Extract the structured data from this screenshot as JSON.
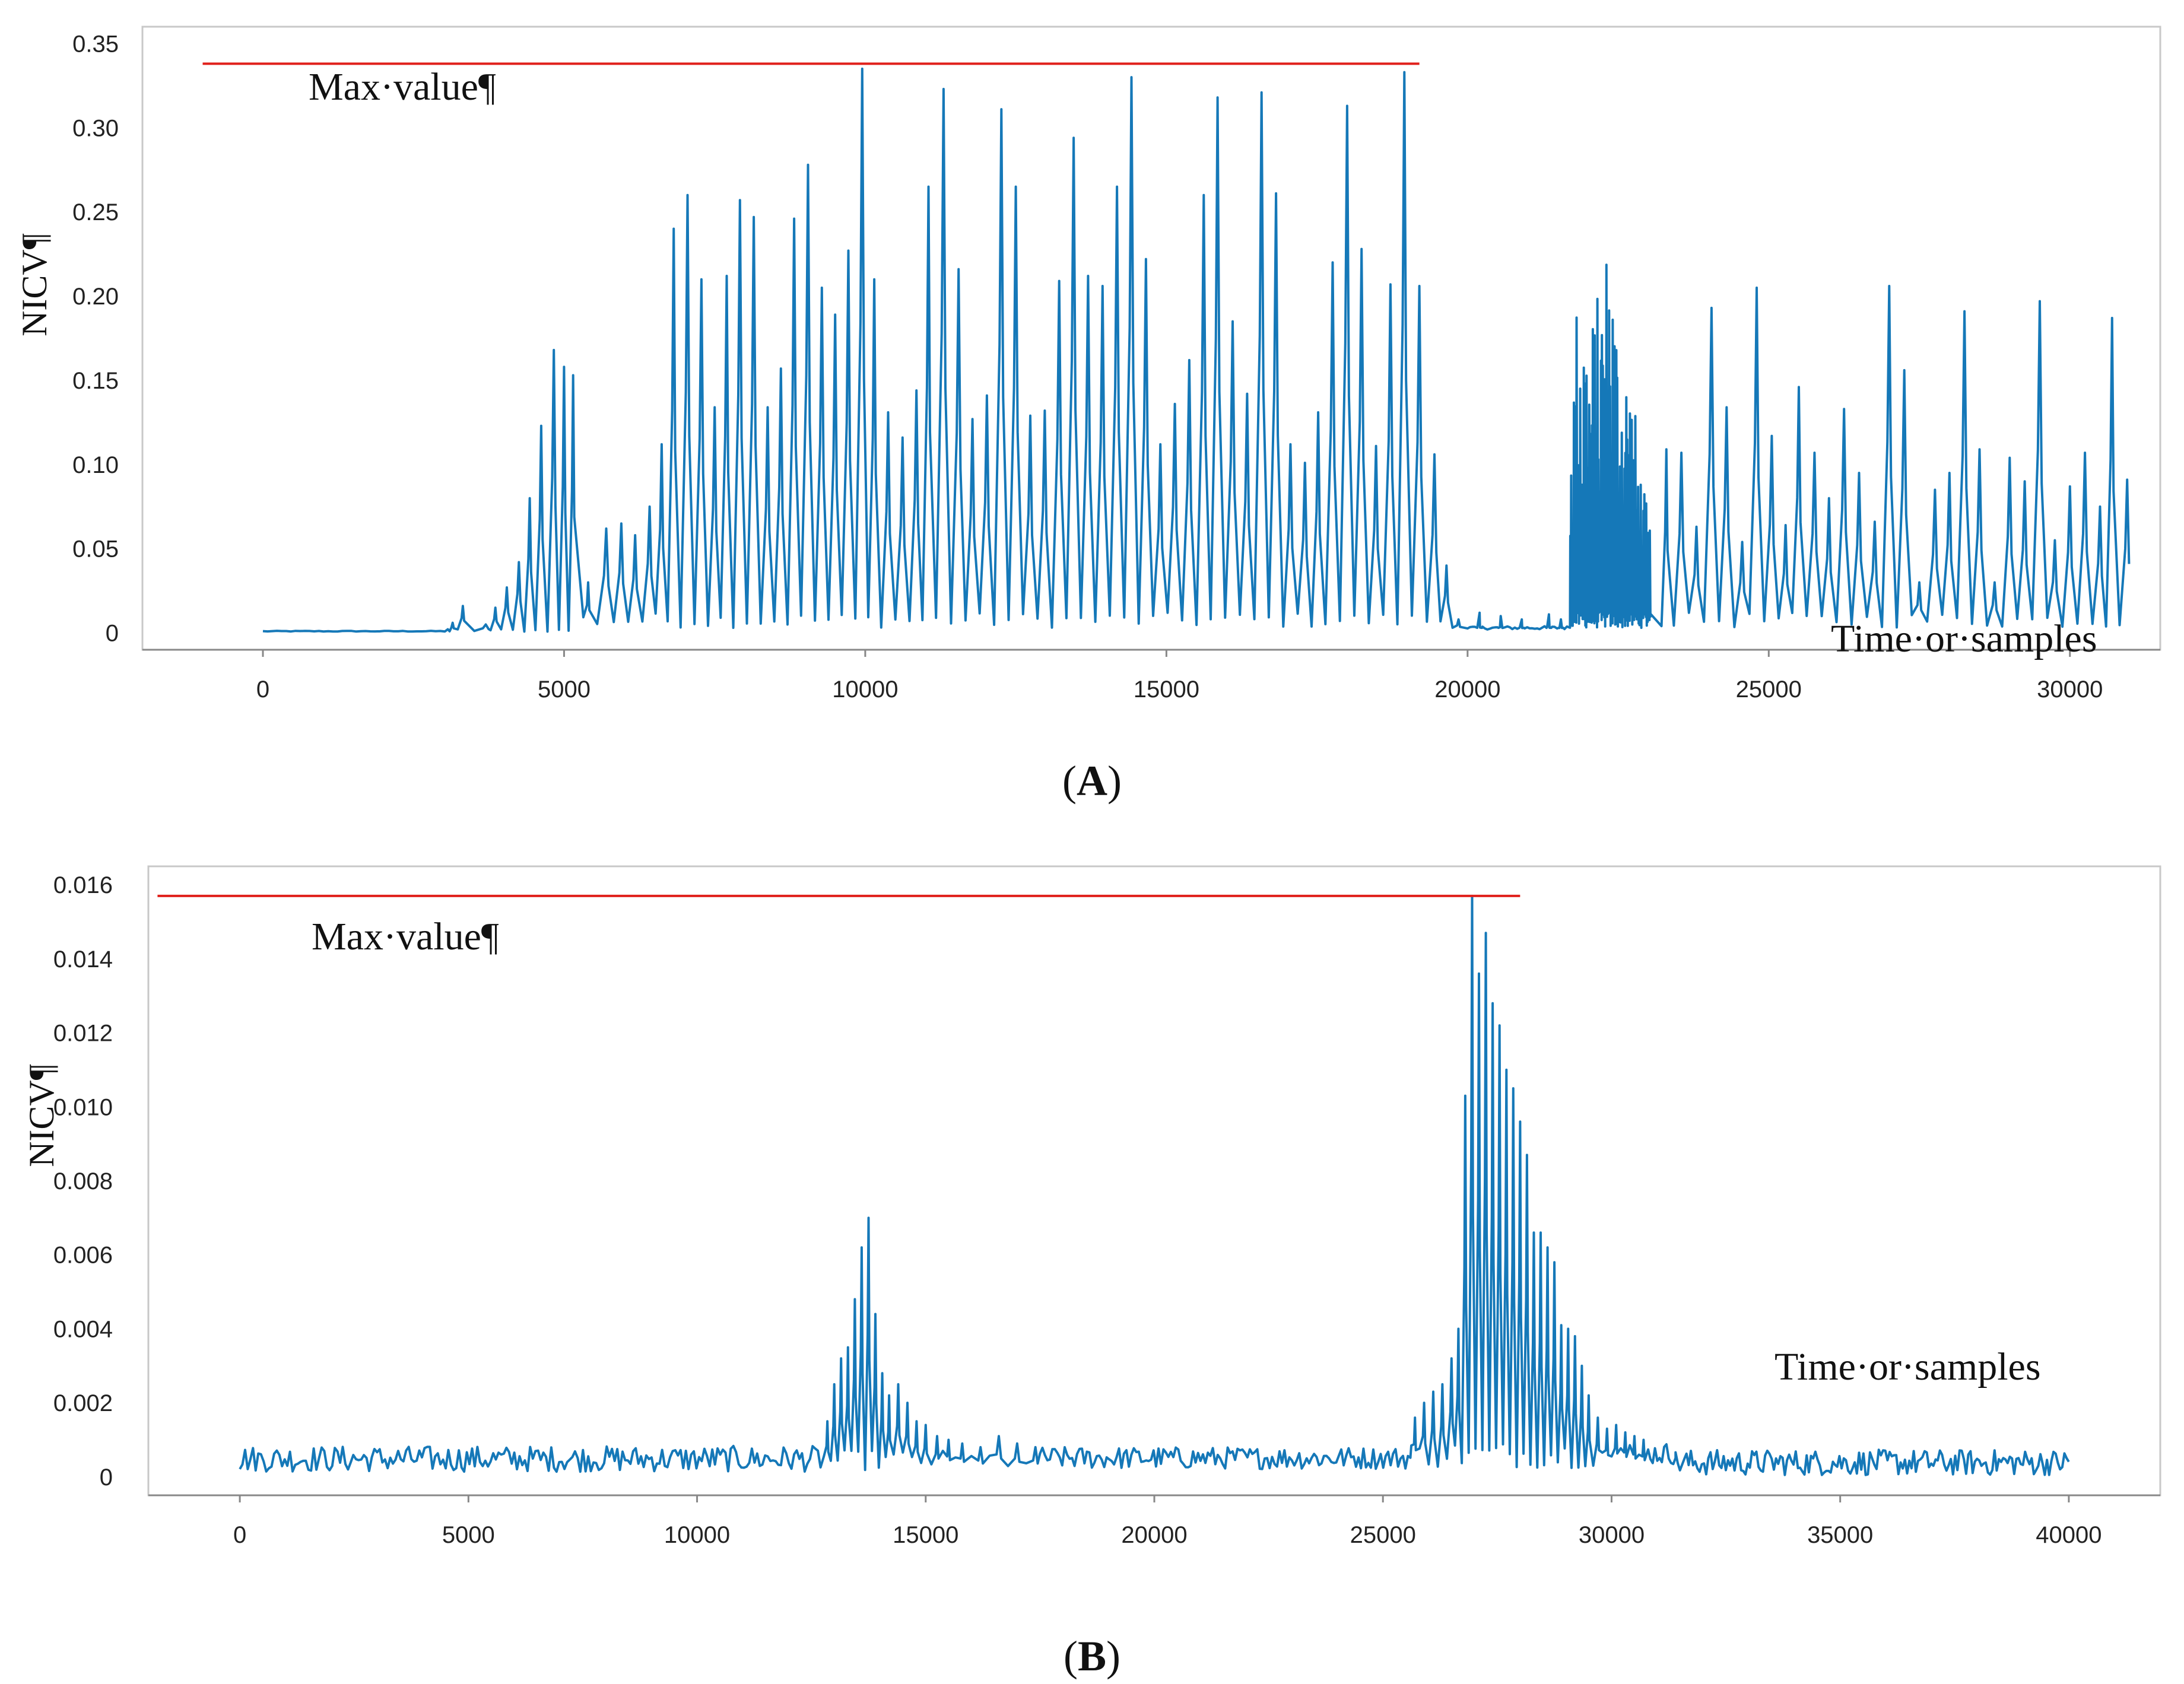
{
  "colors": {
    "series": "#1578b8",
    "max_line": "#e0201b",
    "axis": "#888888",
    "frame": "#c8c8c8",
    "text": "#111111"
  },
  "chart_data": [
    {
      "panel": "A",
      "caption_label": "A",
      "type": "line",
      "title": "",
      "ylabel": "NICV¶",
      "xlabel_annotation": "Time·or·samples",
      "max_label": "Max·value¶",
      "xlim": [
        -2000,
        31500
      ],
      "ylim": [
        -0.01,
        0.36
      ],
      "xticks": [
        0,
        5000,
        10000,
        15000,
        20000,
        25000,
        30000
      ],
      "xtick_labels": [
        "0",
        "5000",
        "10000",
        "15000",
        "20000",
        "25000",
        "30000"
      ],
      "yticks": [
        0,
        0.05,
        0.1,
        0.15,
        0.2,
        0.25,
        0.3,
        0.35
      ],
      "ytick_labels": [
        "0",
        "0.05",
        "0.10",
        "0.15",
        "0.20",
        "0.25",
        "0.30",
        "0.35"
      ],
      "max_line": {
        "value": 0.338,
        "x_start": -1000,
        "x_end": 19200
      },
      "series": [
        {
          "name": "NICV",
          "segments": [
            {
              "type": "flat",
              "from": 0,
              "to": 3100,
              "level": 0.001,
              "noise": 0.0005
            },
            {
              "type": "peaks",
              "level": 0.002,
              "peaks": [
                [
                  3150,
                  0.006
                ],
                [
                  3320,
                  0.016
                ],
                [
                  3700,
                  0.005
                ],
                [
                  3860,
                  0.015
                ],
                [
                  4050,
                  0.027
                ],
                [
                  4250,
                  0.042
                ],
                [
                  4430,
                  0.08
                ],
                [
                  4620,
                  0.123
                ],
                [
                  4830,
                  0.168
                ],
                [
                  5000,
                  0.158
                ],
                [
                  5150,
                  0.153
                ]
              ]
            },
            {
              "type": "peaks",
              "level": 0.01,
              "peaks": [
                [
                  5400,
                  0.03
                ],
                [
                  5700,
                  0.062
                ],
                [
                  5950,
                  0.065
                ],
                [
                  6180,
                  0.058
                ],
                [
                  6420,
                  0.075
                ],
                [
                  6620,
                  0.112
                ],
                [
                  6820,
                  0.24
                ],
                [
                  7050,
                  0.26
                ],
                [
                  7280,
                  0.21
                ],
                [
                  7500,
                  0.134
                ],
                [
                  7700,
                  0.212
                ],
                [
                  7920,
                  0.257
                ],
                [
                  8150,
                  0.247
                ],
                [
                  8380,
                  0.134
                ],
                [
                  8600,
                  0.157
                ],
                [
                  8820,
                  0.246
                ],
                [
                  9050,
                  0.278
                ],
                [
                  9280,
                  0.205
                ],
                [
                  9500,
                  0.189
                ],
                [
                  9720,
                  0.227
                ],
                [
                  9950,
                  0.335
                ],
                [
                  10150,
                  0.21
                ],
                [
                  10380,
                  0.131
                ],
                [
                  10620,
                  0.116
                ],
                [
                  10850,
                  0.144
                ],
                [
                  11050,
                  0.265
                ],
                [
                  11300,
                  0.323
                ],
                [
                  11550,
                  0.216
                ],
                [
                  11780,
                  0.127
                ],
                [
                  12020,
                  0.141
                ],
                [
                  12260,
                  0.311
                ],
                [
                  12500,
                  0.265
                ],
                [
                  12740,
                  0.129
                ],
                [
                  12980,
                  0.132
                ],
                [
                  13220,
                  0.209
                ],
                [
                  13460,
                  0.294
                ],
                [
                  13700,
                  0.212
                ],
                [
                  13940,
                  0.206
                ],
                [
                  14180,
                  0.265
                ],
                [
                  14420,
                  0.33
                ],
                [
                  14660,
                  0.222
                ],
                [
                  14900,
                  0.112
                ],
                [
                  15140,
                  0.136
                ],
                [
                  15380,
                  0.162
                ],
                [
                  15620,
                  0.26
                ],
                [
                  15850,
                  0.318
                ],
                [
                  16100,
                  0.185
                ],
                [
                  16340,
                  0.142
                ],
                [
                  16580,
                  0.321
                ],
                [
                  16820,
                  0.261
                ],
                [
                  17060,
                  0.112
                ],
                [
                  17300,
                  0.101
                ],
                [
                  17520,
                  0.131
                ],
                [
                  17760,
                  0.22
                ],
                [
                  18000,
                  0.313
                ],
                [
                  18240,
                  0.228
                ],
                [
                  18480,
                  0.111
                ],
                [
                  18720,
                  0.207
                ],
                [
                  18950,
                  0.333
                ],
                [
                  19200,
                  0.206
                ],
                [
                  19450,
                  0.106
                ],
                [
                  19650,
                  0.04
                ],
                [
                  19850,
                  0.008
                ]
              ]
            },
            {
              "type": "flat",
              "from": 20000,
              "to": 21650,
              "level": 0.003,
              "noise": 0.002,
              "bumps": [
                [
                  20200,
                  0.012
                ],
                [
                  20550,
                  0.01
                ],
                [
                  20900,
                  0.008
                ],
                [
                  21350,
                  0.011
                ],
                [
                  21550,
                  0.008
                ]
              ]
            },
            {
              "type": "dense",
              "from": 21700,
              "to": 23050,
              "count": 90,
              "env": [
                [
                  21700,
                  0.13
                ],
                [
                  21850,
                  0.23
                ],
                [
                  22000,
                  0.18
                ],
                [
                  22200,
                  0.21
                ],
                [
                  22350,
                  0.25
                ],
                [
                  22500,
                  0.18
                ],
                [
                  22700,
                  0.16
                ],
                [
                  22900,
                  0.09
                ],
                [
                  23050,
                  0.06
                ]
              ]
            },
            {
              "type": "peaks",
              "level": 0.01,
              "peaks": [
                [
                  23300,
                  0.109
                ],
                [
                  23550,
                  0.107
                ],
                [
                  23800,
                  0.063
                ],
                [
                  24050,
                  0.193
                ],
                [
                  24300,
                  0.134
                ],
                [
                  24560,
                  0.054
                ],
                [
                  24800,
                  0.205
                ],
                [
                  25050,
                  0.117
                ],
                [
                  25280,
                  0.064
                ],
                [
                  25500,
                  0.146
                ],
                [
                  25760,
                  0.107
                ],
                [
                  26000,
                  0.08
                ],
                [
                  26250,
                  0.133
                ],
                [
                  26500,
                  0.095
                ],
                [
                  26760,
                  0.066
                ],
                [
                  27000,
                  0.206
                ],
                [
                  27250,
                  0.156
                ],
                [
                  27500,
                  0.03
                ],
                [
                  27760,
                  0.085
                ],
                [
                  28000,
                  0.095
                ],
                [
                  28250,
                  0.191
                ],
                [
                  28500,
                  0.109
                ],
                [
                  28750,
                  0.03
                ],
                [
                  29000,
                  0.104
                ],
                [
                  29250,
                  0.09
                ],
                [
                  29500,
                  0.197
                ],
                [
                  29750,
                  0.055
                ],
                [
                  30000,
                  0.087
                ],
                [
                  30250,
                  0.107
                ],
                [
                  30500,
                  0.075
                ],
                [
                  30700,
                  0.187
                ],
                [
                  30950,
                  0.091
                ]
              ]
            }
          ]
        }
      ]
    },
    {
      "panel": "B",
      "caption_label": "B",
      "type": "line",
      "title": "",
      "ylabel": "NICV¶",
      "xlabel_annotation": "Time·or·samples",
      "max_label": "Max·value¶",
      "xlim": [
        -2000,
        42000
      ],
      "ylim": [
        -0.0005,
        0.0165
      ],
      "xticks": [
        0,
        5000,
        10000,
        15000,
        20000,
        25000,
        30000,
        35000,
        40000
      ],
      "xtick_labels": [
        "0",
        "5000",
        "10000",
        "15000",
        "20000",
        "25000",
        "30000",
        "35000",
        "40000"
      ],
      "yticks": [
        0,
        0.002,
        0.004,
        0.006,
        0.008,
        0.01,
        0.012,
        0.014,
        0.016
      ],
      "ytick_labels": [
        "0",
        "0.002",
        "0.004",
        "0.006",
        "0.008",
        "0.010",
        "0.012",
        "0.014",
        "0.016"
      ],
      "max_line": {
        "value": 0.0157,
        "x_start": -1800,
        "x_end": 28000
      },
      "series": [
        {
          "name": "NICV",
          "segments": [
            {
              "type": "noise",
              "from": 0,
              "to": 12700,
              "base": 0.00045,
              "amp": 0.00035,
              "count": 220
            },
            {
              "type": "peaks",
              "level": 0.0006,
              "peaks": [
                [
                  12850,
                  0.0015
                ],
                [
                  13000,
                  0.0025
                ],
                [
                  13150,
                  0.0032
                ],
                [
                  13300,
                  0.0035
                ],
                [
                  13450,
                  0.0048
                ],
                [
                  13600,
                  0.0062
                ],
                [
                  13750,
                  0.007
                ],
                [
                  13900,
                  0.0044
                ],
                [
                  14050,
                  0.0028
                ],
                [
                  14200,
                  0.0022
                ],
                [
                  14400,
                  0.0025
                ],
                [
                  14600,
                  0.002
                ],
                [
                  14800,
                  0.0015
                ],
                [
                  15000,
                  0.0014
                ],
                [
                  15250,
                  0.0011
                ],
                [
                  15500,
                  0.001
                ],
                [
                  15800,
                  0.0009
                ],
                [
                  16200,
                  0.0008
                ],
                [
                  16600,
                  0.0011
                ],
                [
                  17000,
                  0.0009
                ],
                [
                  17400,
                  0.0008
                ]
              ]
            },
            {
              "type": "noise",
              "from": 17500,
              "to": 25600,
              "base": 0.00048,
              "amp": 0.0003,
              "count": 150
            },
            {
              "type": "peaks",
              "level": 0.0008,
              "peaks": [
                [
                  25700,
                  0.0016
                ],
                [
                  25900,
                  0.002
                ],
                [
                  26100,
                  0.0023
                ],
                [
                  26300,
                  0.0025
                ],
                [
                  26500,
                  0.0032
                ],
                [
                  26650,
                  0.004
                ],
                [
                  26800,
                  0.0103
                ],
                [
                  26950,
                  0.0157
                ],
                [
                  27100,
                  0.0136
                ],
                [
                  27250,
                  0.0147
                ],
                [
                  27400,
                  0.0128
                ],
                [
                  27550,
                  0.0122
                ],
                [
                  27700,
                  0.011
                ],
                [
                  27850,
                  0.0105
                ],
                [
                  28000,
                  0.0096
                ],
                [
                  28150,
                  0.0087
                ],
                [
                  28300,
                  0.0066
                ],
                [
                  28450,
                  0.0066
                ],
                [
                  28600,
                  0.0062
                ],
                [
                  28750,
                  0.0058
                ],
                [
                  28900,
                  0.0041
                ],
                [
                  29050,
                  0.004
                ],
                [
                  29200,
                  0.0038
                ],
                [
                  29350,
                  0.003
                ],
                [
                  29500,
                  0.0022
                ],
                [
                  29700,
                  0.0016
                ],
                [
                  29900,
                  0.0013
                ],
                [
                  30100,
                  0.0014
                ],
                [
                  30300,
                  0.0012
                ],
                [
                  30500,
                  0.0011
                ],
                [
                  30700,
                  0.001
                ]
              ]
            },
            {
              "type": "noise",
              "from": 30800,
              "to": 31400,
              "base": 0.0006,
              "amp": 0.0003,
              "count": 12
            },
            {
              "type": "noise",
              "from": 31400,
              "to": 40000,
              "base": 0.00035,
              "amp": 0.00035,
              "count": 180
            }
          ]
        }
      ]
    }
  ]
}
